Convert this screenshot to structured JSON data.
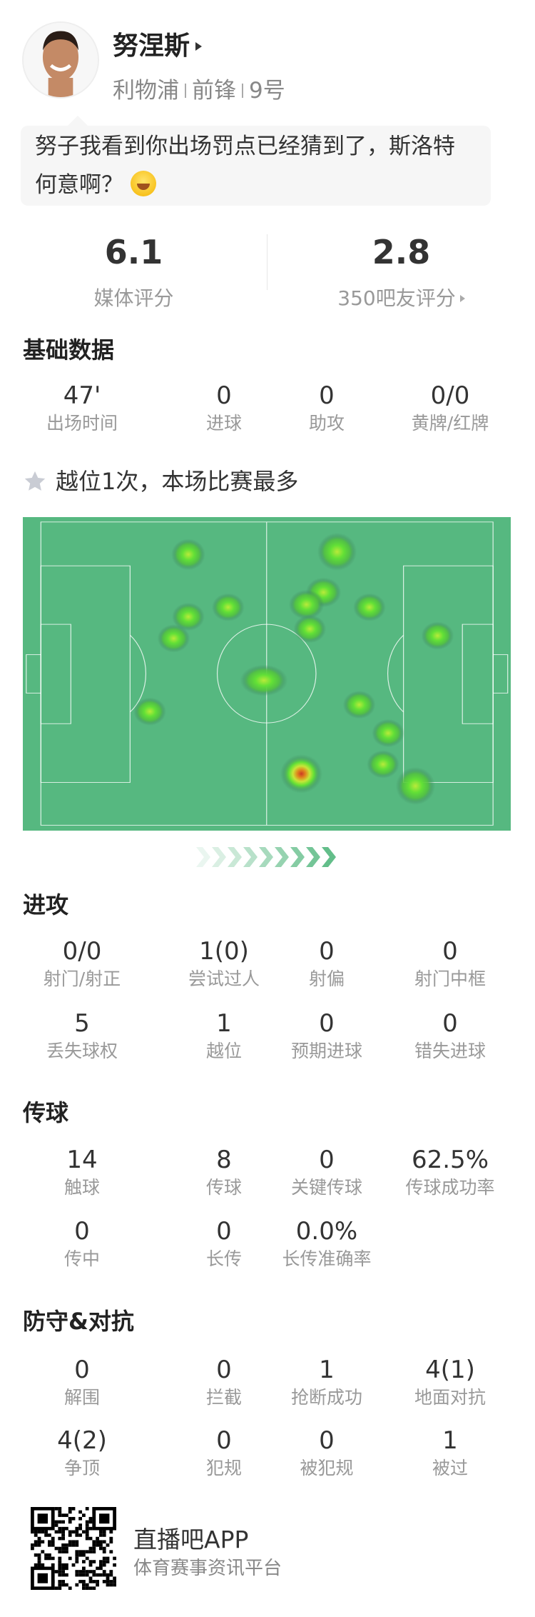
{
  "player": {
    "name": "努涅斯",
    "team": "利物浦",
    "position": "前锋",
    "number": "9号"
  },
  "comment": {
    "text": "努子我看到你出场罚点已经猜到了，斯洛特何意啊？",
    "emoji": "laughing-tears-emoji"
  },
  "ratings": [
    {
      "value": "6.1",
      "label": "媒体评分"
    },
    {
      "value": "2.8",
      "label": "350吧友评分"
    }
  ],
  "basic": {
    "title": "基础数据",
    "stats": [
      {
        "value": "47'",
        "label": "出场时间"
      },
      {
        "value": "0",
        "label": "进球"
      },
      {
        "value": "0",
        "label": "助攻"
      },
      {
        "value": "0/0",
        "label": "黄牌/红牌"
      }
    ]
  },
  "highlight": {
    "text": "越位1次，本场比赛最多",
    "icon": "star-icon"
  },
  "heatmap": {
    "pitch_color": "#56b880",
    "hot_color": "#d0432a"
  },
  "attack": {
    "title": "进攻",
    "rows": [
      [
        {
          "value": "0/0",
          "label": "射门/射正"
        },
        {
          "value": "1(0)",
          "label": "尝试过人"
        },
        {
          "value": "0",
          "label": "射偏"
        },
        {
          "value": "0",
          "label": "射门中框"
        }
      ],
      [
        {
          "value": "5",
          "label": "丢失球权"
        },
        {
          "value": "1",
          "label": "越位"
        },
        {
          "value": "0",
          "label": "预期进球"
        },
        {
          "value": "0",
          "label": "错失进球"
        }
      ]
    ]
  },
  "passing": {
    "title": "传球",
    "rows": [
      [
        {
          "value": "14",
          "label": "触球"
        },
        {
          "value": "8",
          "label": "传球"
        },
        {
          "value": "0",
          "label": "关键传球"
        },
        {
          "value": "62.5%",
          "label": "传球成功率"
        }
      ],
      [
        {
          "value": "0",
          "label": "传中"
        },
        {
          "value": "0",
          "label": "长传"
        },
        {
          "value": "0.0%",
          "label": "长传准确率"
        }
      ]
    ]
  },
  "defense": {
    "title": "防守&对抗",
    "rows": [
      [
        {
          "value": "0",
          "label": "解围"
        },
        {
          "value": "0",
          "label": "拦截"
        },
        {
          "value": "1",
          "label": "抢断成功"
        },
        {
          "value": "4(1)",
          "label": "地面对抗"
        }
      ],
      [
        {
          "value": "4(2)",
          "label": "争顶"
        },
        {
          "value": "0",
          "label": "犯规"
        },
        {
          "value": "0",
          "label": "被犯规"
        },
        {
          "value": "1",
          "label": "被过"
        }
      ]
    ]
  },
  "footer": {
    "app_name": "直播吧APP",
    "tagline": "体育赛事资讯平台"
  }
}
